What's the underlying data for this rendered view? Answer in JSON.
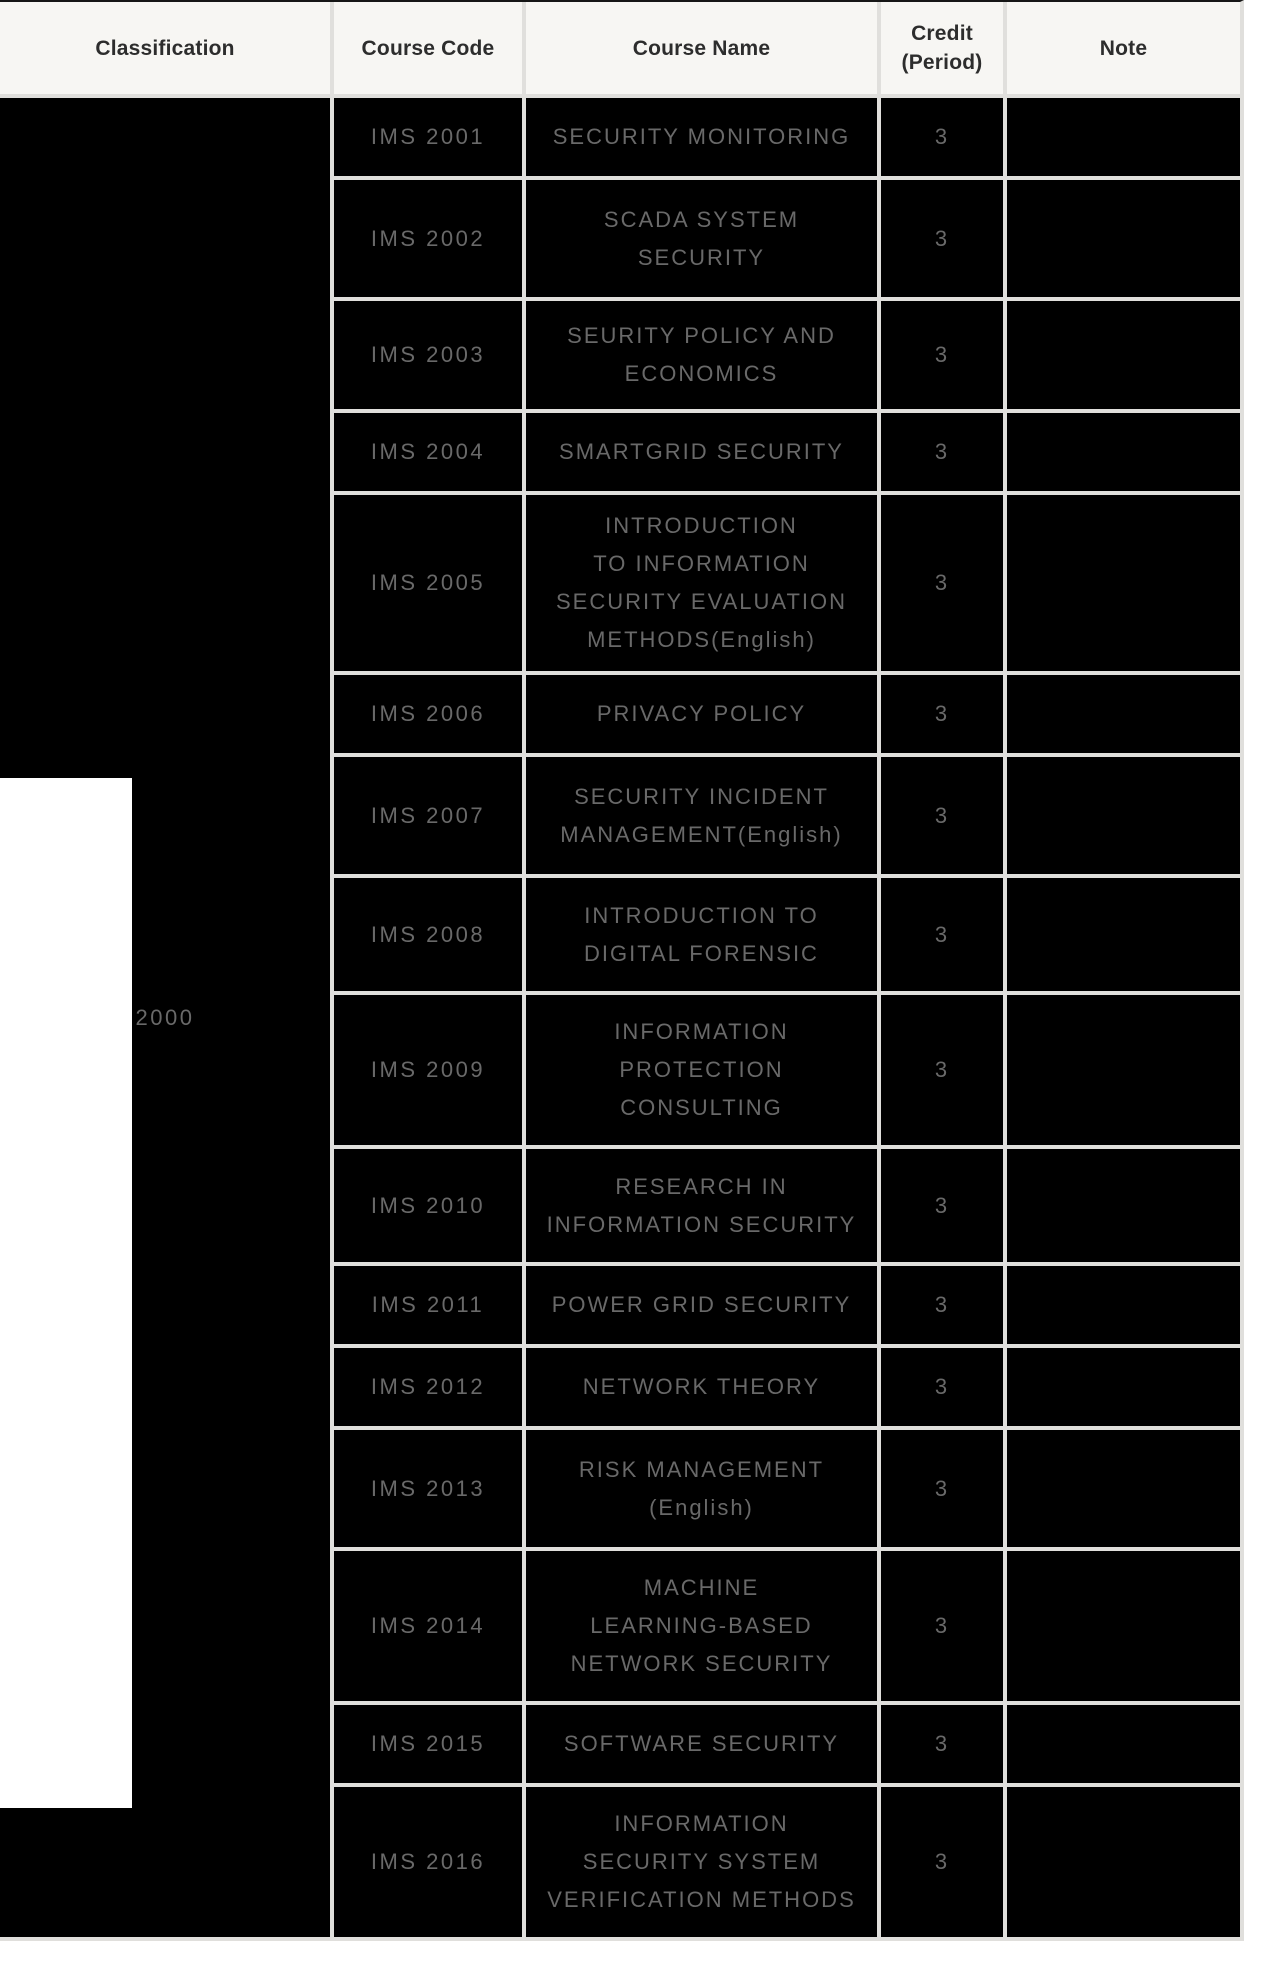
{
  "table": {
    "header": {
      "classification": "Classification",
      "course_code": "Course Code",
      "course_name": "Course Name",
      "credit": "Credit (Period)",
      "note": "Note"
    },
    "classification_label": "2000",
    "rows": [
      {
        "code": "IMS 2001",
        "name": "SECURITY MONITORING",
        "credit": "3",
        "note": ""
      },
      {
        "code": "IMS 2002",
        "name": "SCADA SYSTEM\nSECURITY",
        "credit": "3",
        "note": ""
      },
      {
        "code": "IMS 2003",
        "name": "SEURITY POLICY AND\nECONOMICS",
        "credit": "3",
        "note": ""
      },
      {
        "code": "IMS 2004",
        "name": "SMARTGRID SECURITY",
        "credit": "3",
        "note": ""
      },
      {
        "code": "IMS 2005",
        "name": "INTRODUCTION\nTO INFORMATION\nSECURITY EVALUATION\nMETHODS(English)",
        "credit": "3",
        "note": ""
      },
      {
        "code": "IMS 2006",
        "name": "PRIVACY POLICY",
        "credit": "3",
        "note": ""
      },
      {
        "code": "IMS 2007",
        "name": "SECURITY INCIDENT\nMANAGEMENT(English)",
        "credit": "3",
        "note": ""
      },
      {
        "code": "IMS 2008",
        "name": "INTRODUCTION TO\nDIGITAL FORENSIC",
        "credit": "3",
        "note": ""
      },
      {
        "code": "IMS 2009",
        "name": "INFORMATION\nPROTECTION\nCONSULTING",
        "credit": "3",
        "note": ""
      },
      {
        "code": "IMS 2010",
        "name": "RESEARCH IN\nINFORMATION SECURITY",
        "credit": "3",
        "note": ""
      },
      {
        "code": "IMS 2011",
        "name": "POWER GRID SECURITY",
        "credit": "3",
        "note": ""
      },
      {
        "code": "IMS 2012",
        "name": "NETWORK THEORY",
        "credit": "3",
        "note": ""
      },
      {
        "code": "IMS 2013",
        "name": "RISK MANAGEMENT\n(English)",
        "credit": "3",
        "note": ""
      },
      {
        "code": "IMS 2014",
        "name": "MACHINE\nLEARNING-BASED\nNETWORK SECURITY",
        "credit": "3",
        "note": ""
      },
      {
        "code": "IMS 2015",
        "name": "SOFTWARE SECURITY",
        "credit": "3",
        "note": ""
      },
      {
        "code": "IMS 2016",
        "name": "INFORMATION\nSECURITY SYSTEM\nVERIFICATION METHODS",
        "credit": "3",
        "note": ""
      }
    ],
    "colors": {
      "header_bg": "#f7f6f3",
      "header_text": "#2d2d2d",
      "cell_bg": "#000000",
      "cell_text": "#696969",
      "grid_line": "#e0dfdc",
      "top_border": "#161616",
      "page_bg": "#ffffff",
      "overlay": "#ffffff"
    }
  }
}
